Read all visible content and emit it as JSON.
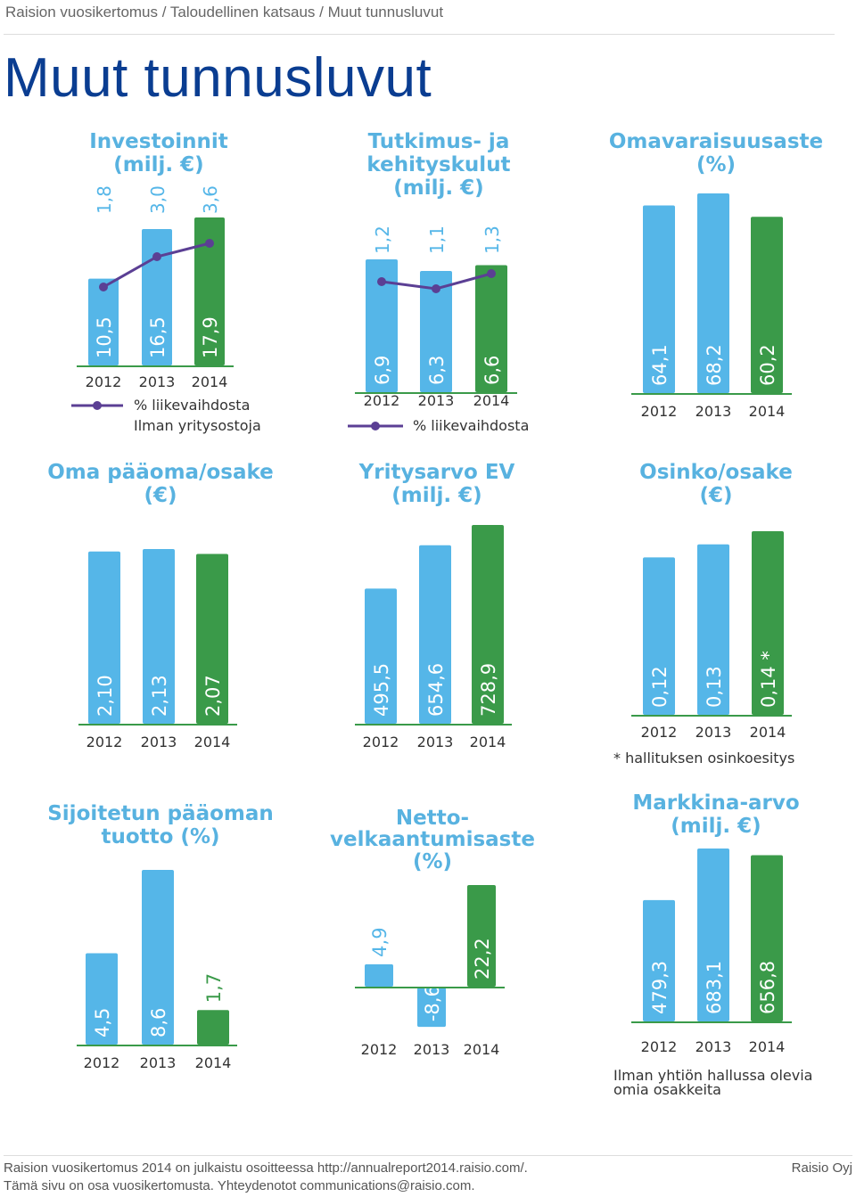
{
  "breadcrumb": "Raision vuosikertomus / Taloudellinen katsaus / Muut tunnusluvut",
  "page_title": "Muut tunnusluvut",
  "colors": {
    "bar_light": "#55b6e8",
    "bar_dark": "#3a9a49",
    "line": "#5b3f94",
    "title": "#58b2e0",
    "axis": "#3a9a49",
    "text": "#333333"
  },
  "chart_data": [
    {
      "type": "bar",
      "title": [
        "Investoinnit",
        "(milj. €)"
      ],
      "categories": [
        "2012",
        "2013",
        "2014"
      ],
      "values": [
        10.5,
        16.5,
        17.9
      ],
      "value_labels": [
        "10,5",
        "16,5",
        "17,9"
      ],
      "line_series": {
        "name": "% liikevaihdosta",
        "values": [
          1.8,
          3.0,
          3.6
        ],
        "labels": [
          "1,8",
          "3,0",
          "3,6"
        ]
      },
      "legend": [
        "% liikevaihdosta",
        "Ilman yritysostoja"
      ]
    },
    {
      "type": "bar",
      "title": [
        "Tutkimus- ja",
        "kehityskulut",
        "(milj. €)"
      ],
      "categories": [
        "2012",
        "2013",
        "2014"
      ],
      "values": [
        6.9,
        6.3,
        6.6
      ],
      "value_labels": [
        "6,9",
        "6,3",
        "6,6"
      ],
      "line_series": {
        "name": "% liikevaihdosta",
        "values": [
          1.2,
          1.1,
          1.3
        ],
        "labels": [
          "1,2",
          "1,1",
          "1,3"
        ]
      },
      "legend": [
        "% liikevaihdosta"
      ]
    },
    {
      "type": "bar",
      "title": [
        "Omavaraisuusaste",
        "(%)"
      ],
      "categories": [
        "2012",
        "2013",
        "2014"
      ],
      "values": [
        64.1,
        68.2,
        60.2
      ],
      "value_labels": [
        "64,1",
        "68,2",
        "60,2"
      ]
    },
    {
      "type": "bar",
      "title": [
        "Oma pääoma/osake",
        "(€)"
      ],
      "categories": [
        "2012",
        "2013",
        "2014"
      ],
      "values": [
        2.1,
        2.13,
        2.07
      ],
      "value_labels": [
        "2,10",
        "2,13",
        "2,07"
      ]
    },
    {
      "type": "bar",
      "title": [
        "Yritysarvo EV",
        "(milj. €)"
      ],
      "categories": [
        "2012",
        "2013",
        "2014"
      ],
      "values": [
        495.5,
        654.6,
        728.9
      ],
      "value_labels": [
        "495,5",
        "654,6",
        "728,9"
      ]
    },
    {
      "type": "bar",
      "title": [
        "Osinko/osake",
        "(€)"
      ],
      "categories": [
        "2012",
        "2013",
        "2014"
      ],
      "values": [
        0.12,
        0.13,
        0.14
      ],
      "value_labels": [
        "0,12",
        "0,13",
        "0,14 *"
      ],
      "footnote": "* hallituksen osinkoesitys"
    },
    {
      "type": "bar",
      "title": [
        "Sijoitetun pääoman",
        "tuotto (%)"
      ],
      "categories": [
        "2012",
        "2013",
        "2014"
      ],
      "values": [
        4.5,
        8.6,
        1.7
      ],
      "value_labels": [
        "4,5",
        "8,6",
        "1,7"
      ]
    },
    {
      "type": "bar",
      "title": [
        "Netto-",
        "velkaantumisaste",
        "(%)"
      ],
      "categories": [
        "2012",
        "2013",
        "2014"
      ],
      "values": [
        4.9,
        -8.6,
        22.2
      ],
      "value_labels": [
        "4,9",
        "-8,6",
        "22,2"
      ]
    },
    {
      "type": "bar",
      "title": [
        "Markkina-arvo",
        "(milj. €)"
      ],
      "categories": [
        "2012",
        "2013",
        "2014"
      ],
      "values": [
        479.3,
        683.1,
        656.8
      ],
      "value_labels": [
        "479,3",
        "683,1",
        "656,8"
      ],
      "footnote_lines": [
        "Ilman yhtiön hallussa olevia",
        "omia osakkeita"
      ]
    }
  ],
  "footer": {
    "line1": "Raision vuosikertomus 2014 on julkaistu osoitteessa http://annualreport2014.raisio.com/.",
    "line2": "Tämä sivu on osa vuosikertomusta. Yhteydenotot communications@raisio.com.",
    "brand": "Raisio Oyj"
  }
}
